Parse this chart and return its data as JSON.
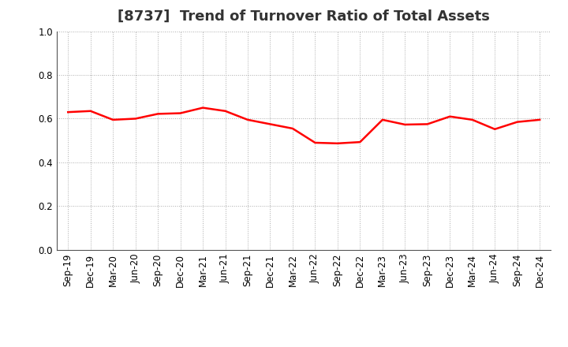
{
  "title": "[8737]  Trend of Turnover Ratio of Total Assets",
  "x_labels": [
    "Sep-19",
    "Dec-19",
    "Mar-20",
    "Jun-20",
    "Sep-20",
    "Dec-20",
    "Mar-21",
    "Jun-21",
    "Sep-21",
    "Dec-21",
    "Mar-22",
    "Jun-22",
    "Sep-22",
    "Dec-22",
    "Mar-23",
    "Jun-23",
    "Sep-23",
    "Dec-23",
    "Mar-24",
    "Jun-24",
    "Sep-24",
    "Dec-24"
  ],
  "y_values": [
    0.63,
    0.635,
    0.595,
    0.6,
    0.622,
    0.625,
    0.65,
    0.635,
    0.595,
    0.575,
    0.555,
    0.49,
    0.487,
    0.493,
    0.595,
    0.573,
    0.575,
    0.61,
    0.595,
    0.552,
    0.585,
    0.595
  ],
  "line_color": "#FF0000",
  "line_width": 1.8,
  "ylim": [
    0.0,
    1.0
  ],
  "yticks": [
    0.0,
    0.2,
    0.4,
    0.6,
    0.8,
    1.0
  ],
  "grid_color": "#AAAAAA",
  "bg_color": "#FFFFFF",
  "title_fontsize": 13,
  "tick_fontsize": 8.5,
  "title_color": "#333333"
}
